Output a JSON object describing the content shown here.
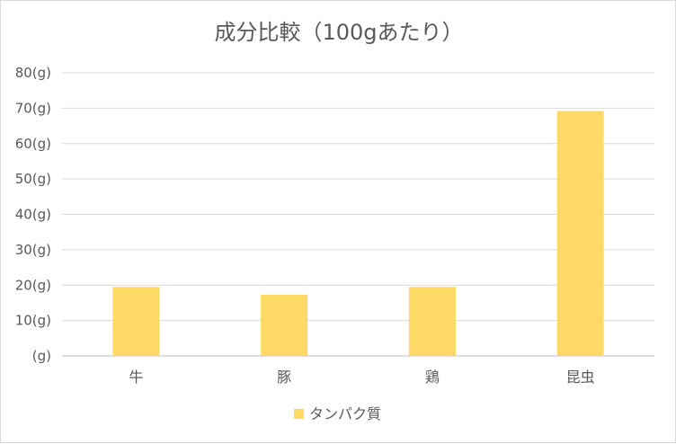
{
  "chart_data": {
    "type": "bar",
    "title": "成分比較（100gあたり）",
    "categories": [
      "牛",
      "豚",
      "鶏",
      "昆虫"
    ],
    "series": [
      {
        "name": "タンパク質",
        "values": [
          19.5,
          17.3,
          19.5,
          69.2
        ],
        "color": "#ffd966"
      }
    ],
    "yticks": [
      "(g)",
      "10(g)",
      "20(g)",
      "30(g)",
      "40(g)",
      "50(g)",
      "60(g)",
      "70(g)",
      "80(g)"
    ],
    "ylim": [
      0,
      80
    ],
    "grid": true,
    "legend_position": "bottom"
  }
}
